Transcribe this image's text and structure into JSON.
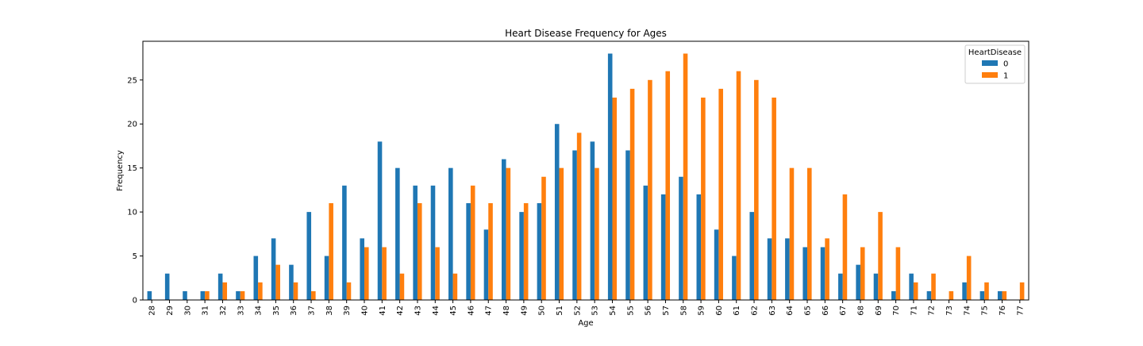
{
  "chart_data": {
    "type": "bar",
    "title": "Heart Disease Frequency for Ages",
    "xlabel": "Age",
    "ylabel": "Frequency",
    "ylim": [
      0,
      29.4
    ],
    "yticks": [
      0,
      5,
      10,
      15,
      20,
      25
    ],
    "grid": false,
    "legend_title": "HeartDisease",
    "legend_position": "top-right",
    "categories": [
      "28",
      "29",
      "30",
      "31",
      "32",
      "33",
      "34",
      "35",
      "36",
      "37",
      "38",
      "39",
      "40",
      "41",
      "42",
      "43",
      "44",
      "45",
      "46",
      "47",
      "48",
      "49",
      "50",
      "51",
      "52",
      "53",
      "54",
      "55",
      "56",
      "57",
      "58",
      "59",
      "60",
      "61",
      "62",
      "63",
      "64",
      "65",
      "66",
      "67",
      "68",
      "69",
      "70",
      "71",
      "72",
      "73",
      "74",
      "75",
      "76",
      "77"
    ],
    "series": [
      {
        "name": "0",
        "color": "#1f77b4",
        "values": [
          1,
          3,
          1,
          1,
          3,
          1,
          5,
          7,
          4,
          10,
          5,
          13,
          7,
          18,
          15,
          13,
          13,
          15,
          11,
          8,
          16,
          10,
          11,
          20,
          17,
          18,
          28,
          17,
          13,
          12,
          14,
          12,
          8,
          5,
          10,
          7,
          7,
          6,
          6,
          3,
          4,
          3,
          1,
          3,
          1,
          0,
          2,
          1,
          1,
          0
        ]
      },
      {
        "name": "1",
        "color": "#ff7f0e",
        "values": [
          0,
          0,
          0,
          1,
          2,
          1,
          2,
          4,
          2,
          1,
          11,
          2,
          6,
          6,
          3,
          11,
          6,
          3,
          13,
          11,
          15,
          11,
          14,
          15,
          19,
          15,
          23,
          24,
          25,
          26,
          28,
          23,
          24,
          26,
          25,
          23,
          15,
          15,
          7,
          12,
          6,
          10,
          6,
          2,
          3,
          1,
          5,
          2,
          1,
          2
        ]
      }
    ]
  }
}
